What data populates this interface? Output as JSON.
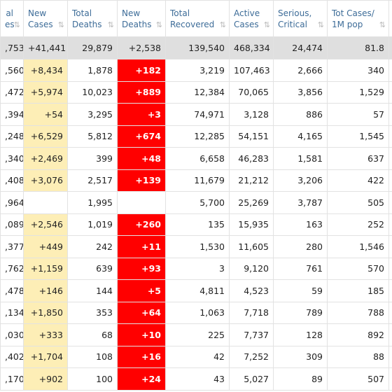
{
  "table": {
    "header": [
      [
        "al",
        "es"
      ],
      [
        "New",
        "Cases"
      ],
      [
        "Total",
        "Deaths"
      ],
      [
        "New",
        "Deaths"
      ],
      [
        "Total",
        "Recovered"
      ],
      [
        "Active",
        "Cases"
      ],
      [
        "Serious,",
        "Critical"
      ],
      [
        "Tot Cases/",
        "1M pop"
      ]
    ],
    "total_row": [
      ",753",
      "+41,441",
      "29,879",
      "+2,538",
      "139,540",
      "468,334",
      "24,474",
      "81.8"
    ],
    "rows": [
      [
        ",560",
        "+8,434",
        "1,878",
        "+182",
        "3,219",
        "107,463",
        "2,666",
        "340"
      ],
      [
        ",472",
        "+5,974",
        "10,023",
        "+889",
        "12,384",
        "70,065",
        "3,856",
        "1,529"
      ],
      [
        ",394",
        "+54",
        "3,295",
        "+3",
        "74,971",
        "3,128",
        "886",
        "57"
      ],
      [
        ",248",
        "+6,529",
        "5,812",
        "+674",
        "12,285",
        "54,151",
        "4,165",
        "1,545"
      ],
      [
        ",340",
        "+2,469",
        "399",
        "+48",
        "6,658",
        "46,283",
        "1,581",
        "637"
      ],
      [
        ",408",
        "+3,076",
        "2,517",
        "+139",
        "11,679",
        "21,212",
        "3,206",
        "422"
      ],
      [
        ",964",
        null,
        "1,995",
        null,
        "5,700",
        "25,269",
        "3,787",
        "505"
      ],
      [
        ",089",
        "+2,546",
        "1,019",
        "+260",
        "135",
        "15,935",
        "163",
        "252"
      ],
      [
        ",377",
        "+449",
        "242",
        "+11",
        "1,530",
        "11,605",
        "280",
        "1,546"
      ],
      [
        ",762",
        "+1,159",
        "639",
        "+93",
        "3",
        "9,120",
        "761",
        "570"
      ],
      [
        ",478",
        "+146",
        "144",
        "+5",
        "4,811",
        "4,523",
        "59",
        "185"
      ],
      [
        ",134",
        "+1,850",
        "353",
        "+64",
        "1,063",
        "7,718",
        "789",
        "788"
      ],
      [
        ",030",
        "+333",
        "68",
        "+10",
        "225",
        "7,737",
        "128",
        "892"
      ],
      [
        ",402",
        "+1,704",
        "108",
        "+16",
        "42",
        "7,252",
        "309",
        "88"
      ],
      [
        ",170",
        "+902",
        "100",
        "+24",
        "43",
        "5,027",
        "89",
        "507"
      ]
    ]
  }
}
